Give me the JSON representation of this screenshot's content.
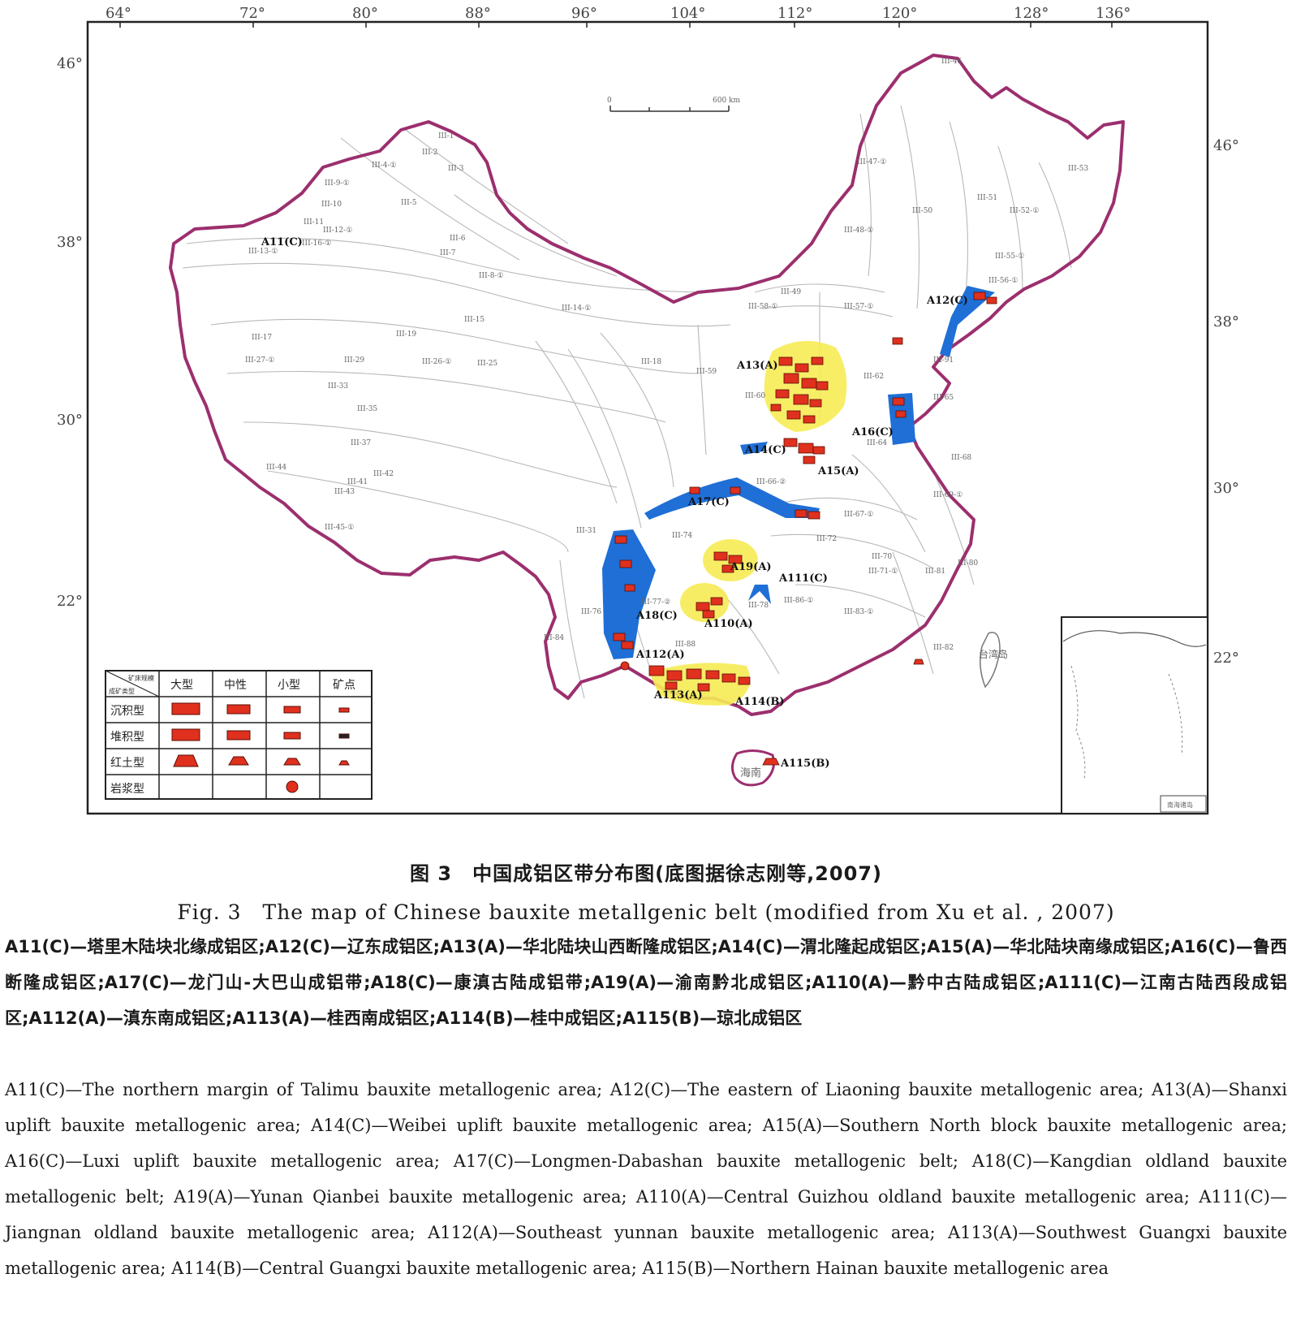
{
  "map": {
    "longitude_ticks": [
      "64°",
      "72°",
      "80°",
      "88°",
      "96°",
      "104°",
      "112°",
      "120°",
      "128°",
      "136°"
    ],
    "latitude_ticks_left": [
      "46°",
      "38°",
      "30°",
      "22°"
    ],
    "latitude_ticks_right": [
      "46°",
      "38°",
      "30°",
      "22°"
    ],
    "scale_bar": {
      "start": "0",
      "end": "600 km"
    },
    "zones": [
      {
        "id": "A11",
        "label": "A11(C)"
      },
      {
        "id": "A12",
        "label": "A12(C)"
      },
      {
        "id": "A13",
        "label": "A13(A)"
      },
      {
        "id": "A14",
        "label": "A14(C)"
      },
      {
        "id": "A15",
        "label": "A15(A)"
      },
      {
        "id": "A16",
        "label": "A16(C)"
      },
      {
        "id": "A17",
        "label": "A17(C)"
      },
      {
        "id": "A18",
        "label": "A18(C)"
      },
      {
        "id": "A19",
        "label": "A19(A)"
      },
      {
        "id": "A110",
        "label": "A110(A)"
      },
      {
        "id": "A111",
        "label": "A111(C)"
      },
      {
        "id": "A112",
        "label": "A112(A)"
      },
      {
        "id": "A113",
        "label": "A113(A)"
      },
      {
        "id": "A114",
        "label": "A114(B)"
      },
      {
        "id": "A115",
        "label": "A115(B)"
      }
    ],
    "region_labels": [
      "台湾岛",
      "海南"
    ],
    "unit_labels": [
      "III-1",
      "III-2",
      "III-3",
      "III-4-①",
      "III-5",
      "III-6",
      "III-7",
      "III-8-①",
      "III-9-①",
      "III-10",
      "III-11",
      "III-12-①",
      "III-13-①",
      "III-14-①",
      "III-15",
      "III-16-①",
      "III-17",
      "III-18",
      "III-19",
      "III-25",
      "III-26-①",
      "III-27-①",
      "III-29",
      "III-31",
      "III-33",
      "III-35",
      "III-37",
      "III-41",
      "III-42",
      "III-43",
      "III-44",
      "III-45-①",
      "III-46",
      "III-47-①",
      "III-48-①",
      "III-49",
      "III-50",
      "III-51",
      "III-52-①",
      "III-53",
      "III-55-①",
      "III-56-①",
      "III-57-①",
      "III-58-①",
      "III-59",
      "III-60",
      "III-62",
      "III-64",
      "III-65",
      "III-66-②",
      "III-67-①",
      "III-68",
      "III-69-①",
      "III-70",
      "III-71-①",
      "III-72",
      "III-74",
      "III-76",
      "III-77-②",
      "III-78",
      "III-80",
      "III-81",
      "III-82",
      "III-83-①",
      "III-84",
      "III-86-①",
      "III-88",
      "III-91"
    ],
    "inset_label": "南海诸岛",
    "legend": {
      "corner_top": "矿床规模",
      "corner_bottom": "成矿类型",
      "columns": [
        "大型",
        "中性",
        "小型",
        "矿点"
      ],
      "rows": [
        "沉积型",
        "堆积型",
        "红土型",
        "岩浆型"
      ]
    },
    "colors": {
      "border": "#9c2f6e",
      "blue_zone": "#1f6fd6",
      "yellow_zone": "#f6ec55",
      "deposit": "#e0301e"
    }
  },
  "caption_zh": "图 3　中国成铝区带分布图(底图据徐志刚等,2007)",
  "caption_en": "Fig. 3　The map of Chinese bauxite metallgenic belt (modified from Xu et al. , 2007)",
  "notes_zh": "A11(C)—塔里木陆块北缘成铝区;A12(C)—辽东成铝区;A13(A)—华北陆块山西断隆成铝区;A14(C)—渭北隆起成铝区;A15(A)—华北陆块南缘成铝区;A16(C)—鲁西断隆成铝区;A17(C)—龙门山-大巴山成铝带;A18(C)—康滇古陆成铝带;A19(A)—渝南黔北成铝区;A110(A)—黔中古陆成铝区;A111(C)—江南古陆西段成铝区;A112(A)—滇东南成铝区;A113(A)—桂西南成铝区;A114(B)—桂中成铝区;A115(B)—琼北成铝区",
  "notes_en": "A11(C)—The northern margin of Talimu bauxite metallogenic area; A12(C)—The eastern of Liaoning bauxite metallogenic area; A13(A)—Shanxi uplift bauxite metallogenic area; A14(C)—Weibei uplift bauxite metallogenic area; A15(A)—Southern North block bauxite metallogenic area; A16(C)—Luxi uplift bauxite metallogenic area; A17(C)—Longmen-Dabashan bauxite metallogenic belt; A18(C)—Kangdian oldland bauxite metallogenic belt; A19(A)—Yunan Qianbei bauxite metallogenic area; A110(A)—Central Guizhou oldland bauxite metallogenic area; A111(C)—Jiangnan oldland bauxite metallogenic area; A112(A)—Southeast yunnan bauxite metallogenic area; A113(A)—Southwest Guangxi bauxite metallogenic area; A114(B)—Central Guangxi bauxite metallogenic area; A115(B)—Northern Hainan bauxite metallogenic area"
}
